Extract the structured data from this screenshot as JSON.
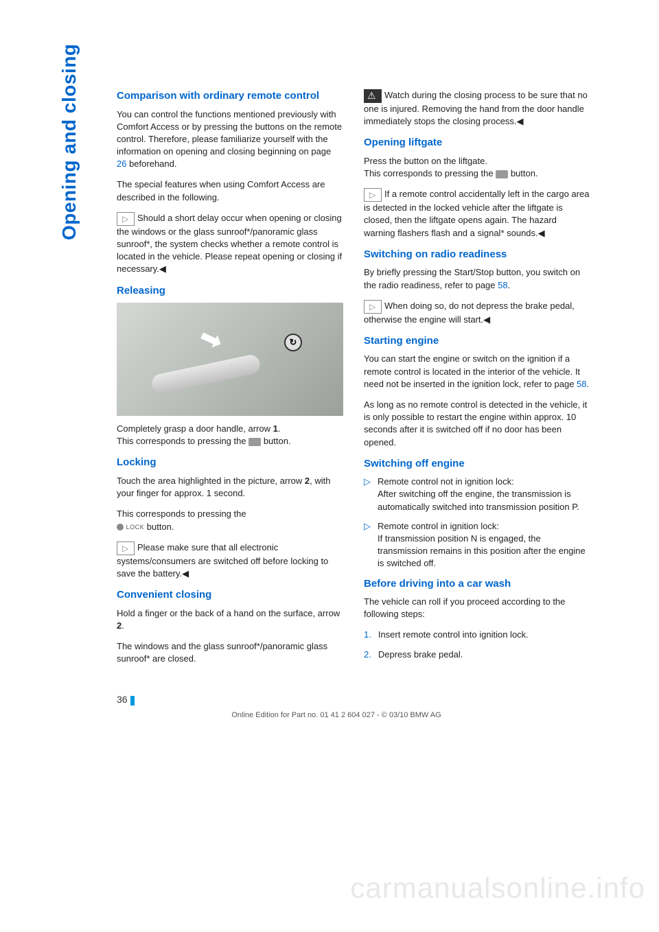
{
  "side_title": "Opening and closing",
  "watermark": "carmanualsonline.info",
  "page_number": "36",
  "footer": "Online Edition for Part no. 01 41 2 604 027 - © 03/10 BMW AG",
  "left": {
    "h1": "Comparison with ordinary remote control",
    "p1a": "You can control the functions mentioned previously with Comfort Access or by pressing the buttons on the remote control. Therefore, please familiarize yourself with the information on opening and closing beginning on page ",
    "p1_ref": "26",
    "p1b": " beforehand.",
    "p2": "The special features when using Comfort Access are described in the following.",
    "note1": "Should a short delay occur when opening or closing the windows or the glass sunroof*/panoramic glass sunroof*, the system checks whether a remote control is located in the vehicle. Please repeat opening or closing if necessary.◀",
    "h2": "Releasing",
    "fig_caption_a": "Completely grasp a door handle, arrow ",
    "fig_caption_bold": "1",
    "fig_caption_b": ".",
    "fig_caption2a": "This corresponds to pressing the ",
    "fig_caption2b": " button.",
    "h3": "Locking",
    "p3a": "Touch the area highlighted in the picture, arrow ",
    "p3_bold": "2",
    "p3b": ", with your finger for approx. 1 second.",
    "p4a": "This corresponds to pressing the ",
    "p4_lock": "LOCK",
    "p4b": " button.",
    "note2": "Please make sure that all electronic systems/consumers are switched off before locking to save the battery.◀",
    "h4": "Convenient closing",
    "p5a": "Hold a finger or the back of a hand on the surface, arrow ",
    "p5_bold": "2",
    "p5b": ".",
    "p6": "The windows and the glass sunroof*/panoramic glass sunroof* are closed."
  },
  "right": {
    "warn1": "Watch during the closing process to be sure that no one is injured. Removing the hand from the door handle immediately stops the closing process.◀",
    "h1": "Opening liftgate",
    "p1": "Press the button on the liftgate.",
    "p1b_a": "This corresponds to pressing the ",
    "p1b_b": " button.",
    "note1": "If a remote control accidentally left in the cargo area is detected in the locked vehicle after the liftgate is closed, then the liftgate opens again. The hazard warning flashers flash and a signal* sounds.◀",
    "h2": "Switching on radio readiness",
    "p2a": "By briefly pressing the Start/Stop button, you switch on the radio readiness, refer to page ",
    "p2_ref": "58",
    "p2b": ".",
    "note2": "When doing so, do not depress the brake pedal, otherwise the engine will start.◀",
    "h3": "Starting engine",
    "p3a": "You can start the engine or switch on the ignition if a remote control is located in the interior of the vehicle. It need not be inserted in the ignition lock, refer to page ",
    "p3_ref": "58",
    "p3b": ".",
    "p4": "As long as no remote control is detected in the vehicle, it is only possible to restart the engine within approx. 10 seconds after it is switched off if no door has been opened.",
    "h4": "Switching off engine",
    "li1": "Remote control not in ignition lock:\nAfter switching off the engine, the transmission is automatically switched into transmission position P.",
    "li2": "Remote control in ignition lock:\nIf transmission position N is engaged, the transmission remains in this position after the engine is switched off.",
    "h5": "Before driving into a car wash",
    "p5": "The vehicle can roll if you proceed according to the following steps:",
    "ol1_num": "1.",
    "ol1": "Insert remote control into ignition lock.",
    "ol2_num": "2.",
    "ol2": "Depress brake pedal."
  }
}
